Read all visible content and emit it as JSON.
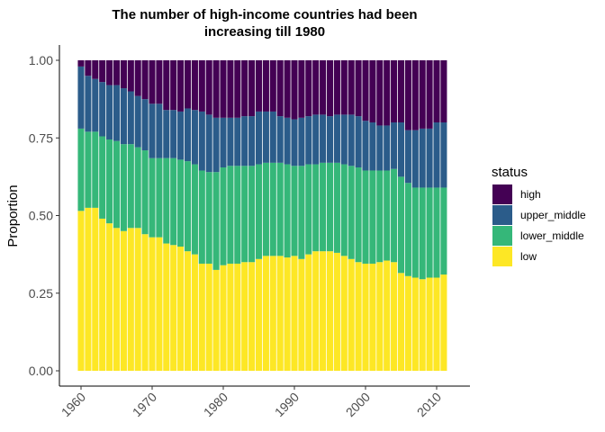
{
  "chart_data": {
    "type": "bar",
    "stacked": true,
    "title": "The number of high-income countries had been increasing till 1980",
    "title_lines": [
      "The number of high-income countries had been",
      "increasing till 1980"
    ],
    "xlabel": "",
    "ylabel": "Proportion",
    "ylim": [
      0,
      1
    ],
    "yticks": [
      "0.00",
      "0.25",
      "0.50",
      "0.75",
      "1.00"
    ],
    "xticks": [
      "1960",
      "1970",
      "1980",
      "1990",
      "2000",
      "2010"
    ],
    "legend": {
      "title": "status",
      "position": "right"
    },
    "x": [
      1960,
      1961,
      1962,
      1963,
      1964,
      1965,
      1966,
      1967,
      1968,
      1969,
      1970,
      1971,
      1972,
      1973,
      1974,
      1975,
      1976,
      1977,
      1978,
      1979,
      1980,
      1981,
      1982,
      1983,
      1984,
      1985,
      1986,
      1987,
      1988,
      1989,
      1990,
      1991,
      1992,
      1993,
      1994,
      1995,
      1996,
      1997,
      1998,
      1999,
      2000,
      2001,
      2002,
      2003,
      2004,
      2005,
      2006,
      2007,
      2008,
      2009,
      2010,
      2011
    ],
    "series": [
      {
        "name": "low",
        "color": "#FDE725",
        "values": [
          0.515,
          0.525,
          0.525,
          0.49,
          0.475,
          0.46,
          0.45,
          0.46,
          0.46,
          0.44,
          0.43,
          0.43,
          0.41,
          0.405,
          0.4,
          0.385,
          0.375,
          0.345,
          0.345,
          0.325,
          0.34,
          0.345,
          0.345,
          0.35,
          0.35,
          0.36,
          0.37,
          0.37,
          0.37,
          0.365,
          0.37,
          0.36,
          0.375,
          0.385,
          0.385,
          0.385,
          0.38,
          0.37,
          0.36,
          0.35,
          0.345,
          0.345,
          0.35,
          0.355,
          0.35,
          0.315,
          0.305,
          0.3,
          0.295,
          0.3,
          0.3,
          0.31
        ]
      },
      {
        "name": "lower_middle",
        "color": "#35B779",
        "values": [
          0.265,
          0.245,
          0.245,
          0.265,
          0.27,
          0.28,
          0.28,
          0.27,
          0.26,
          0.27,
          0.255,
          0.255,
          0.275,
          0.28,
          0.28,
          0.29,
          0.29,
          0.3,
          0.295,
          0.315,
          0.315,
          0.315,
          0.315,
          0.31,
          0.31,
          0.305,
          0.3,
          0.3,
          0.3,
          0.3,
          0.29,
          0.3,
          0.29,
          0.28,
          0.285,
          0.285,
          0.29,
          0.295,
          0.3,
          0.305,
          0.3,
          0.3,
          0.295,
          0.29,
          0.3,
          0.31,
          0.3,
          0.29,
          0.295,
          0.29,
          0.29,
          0.28
        ]
      },
      {
        "name": "upper_middle",
        "color": "#2B5C8A",
        "values": [
          0.2,
          0.18,
          0.17,
          0.175,
          0.175,
          0.18,
          0.18,
          0.17,
          0.165,
          0.165,
          0.175,
          0.175,
          0.155,
          0.155,
          0.155,
          0.17,
          0.175,
          0.19,
          0.185,
          0.175,
          0.16,
          0.155,
          0.155,
          0.16,
          0.16,
          0.17,
          0.165,
          0.165,
          0.15,
          0.15,
          0.15,
          0.155,
          0.155,
          0.16,
          0.155,
          0.15,
          0.155,
          0.16,
          0.165,
          0.165,
          0.16,
          0.155,
          0.145,
          0.145,
          0.15,
          0.175,
          0.17,
          0.185,
          0.19,
          0.19,
          0.21,
          0.21
        ]
      },
      {
        "name": "high",
        "color": "#440154",
        "values": [
          0.02,
          0.05,
          0.06,
          0.07,
          0.08,
          0.08,
          0.09,
          0.1,
          0.115,
          0.125,
          0.14,
          0.14,
          0.16,
          0.16,
          0.165,
          0.155,
          0.16,
          0.165,
          0.175,
          0.185,
          0.185,
          0.185,
          0.185,
          0.18,
          0.18,
          0.165,
          0.165,
          0.165,
          0.18,
          0.185,
          0.19,
          0.185,
          0.18,
          0.175,
          0.175,
          0.18,
          0.175,
          0.175,
          0.175,
          0.18,
          0.195,
          0.2,
          0.21,
          0.21,
          0.2,
          0.2,
          0.225,
          0.225,
          0.22,
          0.22,
          0.2,
          0.2
        ]
      }
    ],
    "legend_order": [
      "high",
      "upper_middle",
      "lower_middle",
      "low"
    ]
  }
}
